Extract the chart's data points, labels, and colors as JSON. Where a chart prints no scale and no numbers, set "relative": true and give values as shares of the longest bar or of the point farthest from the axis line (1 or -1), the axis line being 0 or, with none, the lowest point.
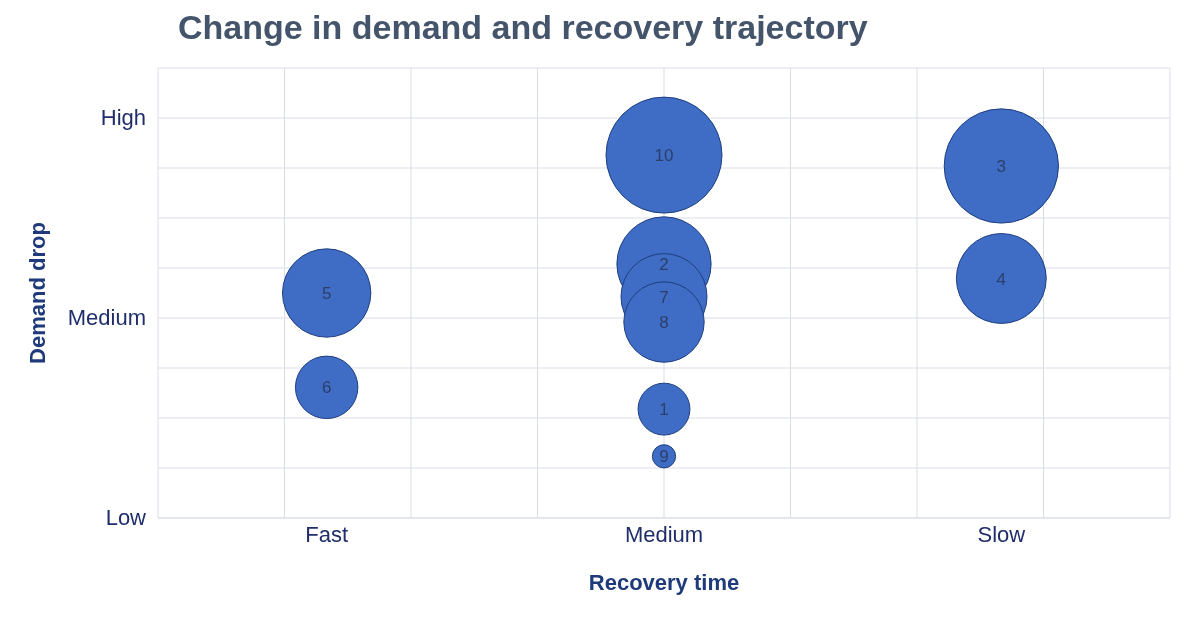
{
  "chart_data": {
    "type": "bubble",
    "title": "Change in demand and recovery trajectory",
    "xlabel": "Recovery time",
    "ylabel": "Demand drop",
    "categories": [
      "Fast",
      "Medium",
      "Slow"
    ],
    "series": [
      {
        "color": "#3f6cc4",
        "x": [
          "Medium",
          "Medium",
          "Slow",
          "Slow",
          "Fast",
          "Fast",
          "Medium",
          "Medium",
          "Medium",
          "Medium"
        ],
        "values": [
          0.3,
          0.7,
          0.97,
          0.66,
          0.62,
          0.36,
          0.61,
          0.54,
          0.17,
          1
        ],
        "sizes": [
          0.2,
          0.66,
          0.97,
          0.6,
          0.58,
          0.29,
          0.55,
          0.48,
          0.04,
          1
        ]
      }
    ],
    "relative": true,
    "annotations": [
      "High",
      "Medium",
      "Low",
      {
        "text": "1",
        "x": "Medium",
        "y": 0.3
      },
      {
        "text": "2",
        "x": "Medium",
        "y": 0.7
      },
      {
        "text": "3",
        "x": "Slow",
        "y": 0.97
      },
      {
        "text": "4",
        "x": "Slow",
        "y": 0.66
      },
      {
        "text": "5",
        "x": "Fast",
        "y": 0.62
      },
      {
        "text": "6",
        "x": "Fast",
        "y": 0.36
      },
      {
        "text": "7",
        "x": "Medium",
        "y": 0.61
      },
      {
        "text": "8",
        "x": "Medium",
        "y": 0.54
      },
      {
        "text": "9",
        "x": "Medium",
        "y": 0.17
      },
      {
        "text": "10",
        "x": "Medium",
        "y": 1
      }
    ],
    "grid": true,
    "legend": false
  }
}
